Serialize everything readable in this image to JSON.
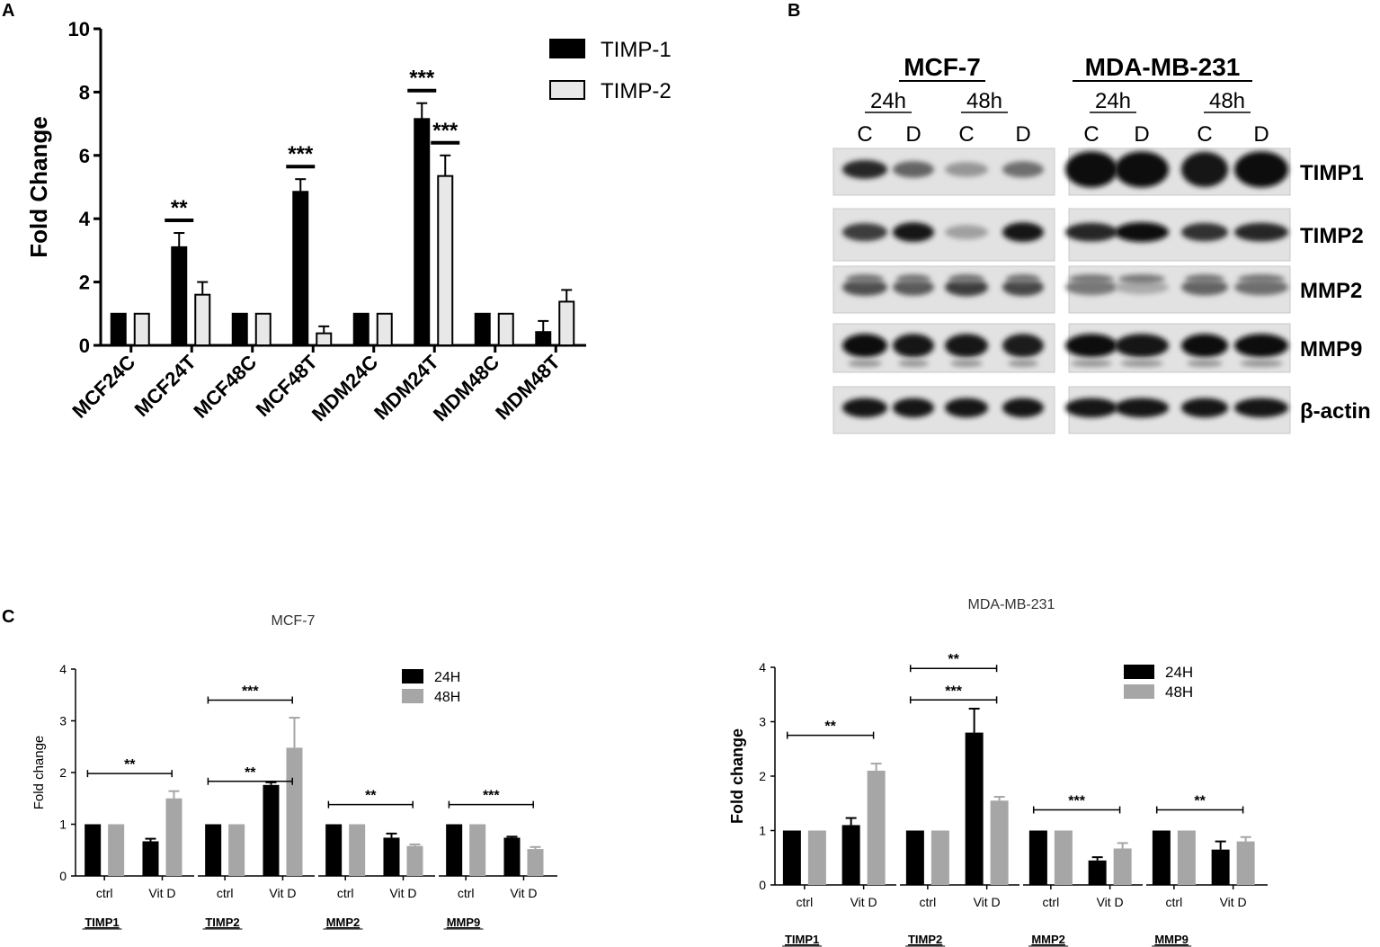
{
  "panel_labels": {
    "a": "A",
    "b": "B",
    "c": "C"
  },
  "panel_a": {
    "chart_data": {
      "type": "bar",
      "title": "",
      "xlabel": "",
      "ylabel": "Fold Change",
      "ylim": [
        0,
        10
      ],
      "yticks": [
        "0",
        "2",
        "4",
        "6",
        "8",
        "10"
      ],
      "categories": [
        "MCF24C",
        "MCF24T",
        "MCF48C",
        "MCF48T",
        "MDM24C",
        "MDM24T",
        "MDM48C",
        "MDM48T"
      ],
      "series": [
        {
          "name": "TIMP-1",
          "color": "#000000",
          "values": [
            1,
            3.1,
            1,
            4.85,
            1,
            7.15,
            1,
            0.42
          ],
          "errors": [
            0,
            0.45,
            0,
            0.4,
            0,
            0.5,
            0,
            0.35
          ]
        },
        {
          "name": "TIMP-2",
          "color": "#e8e8e8",
          "values": [
            1,
            1.6,
            1,
            0.38,
            1,
            5.35,
            1,
            1.38
          ],
          "errors": [
            0,
            0.4,
            0,
            0.22,
            0,
            0.65,
            0,
            0.37
          ]
        }
      ],
      "significance": [
        {
          "category_index": 1,
          "series_index": 0,
          "text": "**"
        },
        {
          "category_index": 3,
          "series_index": 0,
          "text": "***"
        },
        {
          "category_index": 5,
          "series_index": 0,
          "text": "***"
        },
        {
          "category_index": 5,
          "series_index": 1,
          "text": "***"
        }
      ],
      "legend_position": "top-right",
      "grid": false
    }
  },
  "panel_b": {
    "cell_lines": [
      "MCF-7",
      "MDA-MB-231"
    ],
    "timepoints": [
      "24h",
      "48h",
      "24h",
      "48h"
    ],
    "lanes": [
      "C",
      "D",
      "C",
      "D",
      "C",
      "D",
      "C",
      "D"
    ],
    "proteins": [
      "TIMP1",
      "TIMP2",
      "MMP2",
      "MMP9",
      "β-actin"
    ],
    "band_intensity": [
      [
        0.85,
        0.55,
        0.3,
        0.5,
        1.0,
        1.0,
        0.95,
        1.0
      ],
      [
        0.75,
        0.95,
        0.25,
        0.95,
        0.85,
        1.0,
        0.8,
        0.85
      ],
      [
        0.65,
        0.6,
        0.75,
        0.7,
        0.45,
        0.2,
        0.55,
        0.5
      ],
      [
        1.0,
        0.95,
        0.95,
        0.9,
        1.0,
        0.95,
        1.0,
        1.0
      ],
      [
        0.95,
        0.95,
        0.95,
        0.95,
        0.95,
        0.95,
        0.95,
        0.95
      ]
    ]
  },
  "panel_c": {
    "chart_data": [
      {
        "type": "bar",
        "title": "MCF-7",
        "ylabel": "Fold change",
        "ylim": [
          0,
          4
        ],
        "yticks": [
          "0",
          "1",
          "2",
          "3",
          "4"
        ],
        "groups": [
          "TIMP1",
          "TIMP2",
          "MMP2",
          "MMP9"
        ],
        "categories": [
          "ctrl",
          "Vit D"
        ],
        "series": [
          {
            "name": "24H",
            "color": "#000000",
            "values": [
              [
                1,
                0.67
              ],
              [
                1,
                1.76
              ],
              [
                1,
                0.74
              ],
              [
                1,
                0.74
              ]
            ],
            "errors": [
              [
                0,
                0.05
              ],
              [
                0,
                0.05
              ],
              [
                0,
                0.08
              ],
              [
                0,
                0.02
              ]
            ]
          },
          {
            "name": "48H",
            "color": "#a6a6a6",
            "values": [
              [
                1,
                1.5
              ],
              [
                1,
                2.48
              ],
              [
                1,
                0.58
              ],
              [
                1,
                0.52
              ]
            ],
            "errors": [
              [
                0,
                0.14
              ],
              [
                0,
                0.58
              ],
              [
                0,
                0.03
              ],
              [
                0,
                0.04
              ]
            ]
          }
        ],
        "significance": [
          {
            "group_index": 0,
            "level": 1.98,
            "text": "**"
          },
          {
            "group_index": 1,
            "level": 1.83,
            "text": "**"
          },
          {
            "group_index": 1,
            "level": 3.4,
            "text": "***"
          },
          {
            "group_index": 2,
            "level": 1.38,
            "text": "**"
          },
          {
            "group_index": 3,
            "level": 1.38,
            "text": "***"
          }
        ],
        "legend_position": "top-right",
        "grid": false
      },
      {
        "type": "bar",
        "title": "MDA-MB-231",
        "ylabel": "Fold change",
        "ylim": [
          0,
          4
        ],
        "yticks": [
          "0",
          "1",
          "2",
          "3",
          "4"
        ],
        "groups": [
          "TIMP1",
          "TIMP2",
          "MMP2",
          "MMP9"
        ],
        "categories": [
          "ctrl",
          "Vit D"
        ],
        "series": [
          {
            "name": "24H",
            "color": "#000000",
            "values": [
              [
                1,
                1.1
              ],
              [
                1,
                2.8
              ],
              [
                1,
                0.45
              ],
              [
                1,
                0.65
              ]
            ],
            "errors": [
              [
                0,
                0.13
              ],
              [
                0,
                0.44
              ],
              [
                0,
                0.06
              ],
              [
                0,
                0.15
              ]
            ]
          },
          {
            "name": "48H",
            "color": "#a6a6a6",
            "values": [
              [
                1,
                2.1
              ],
              [
                1,
                1.55
              ],
              [
                1,
                0.67
              ],
              [
                1,
                0.8
              ]
            ],
            "errors": [
              [
                0,
                0.13
              ],
              [
                0,
                0.07
              ],
              [
                0,
                0.1
              ],
              [
                0,
                0.08
              ]
            ]
          }
        ],
        "significance": [
          {
            "group_index": 0,
            "level": 2.75,
            "text": "**"
          },
          {
            "group_index": 1,
            "level": 3.4,
            "text": "***"
          },
          {
            "group_index": 1,
            "level": 3.98,
            "text": "**"
          },
          {
            "group_index": 2,
            "level": 1.38,
            "text": "***"
          },
          {
            "group_index": 3,
            "level": 1.38,
            "text": "**"
          }
        ],
        "legend_position": "top-right",
        "grid": false
      }
    ]
  }
}
